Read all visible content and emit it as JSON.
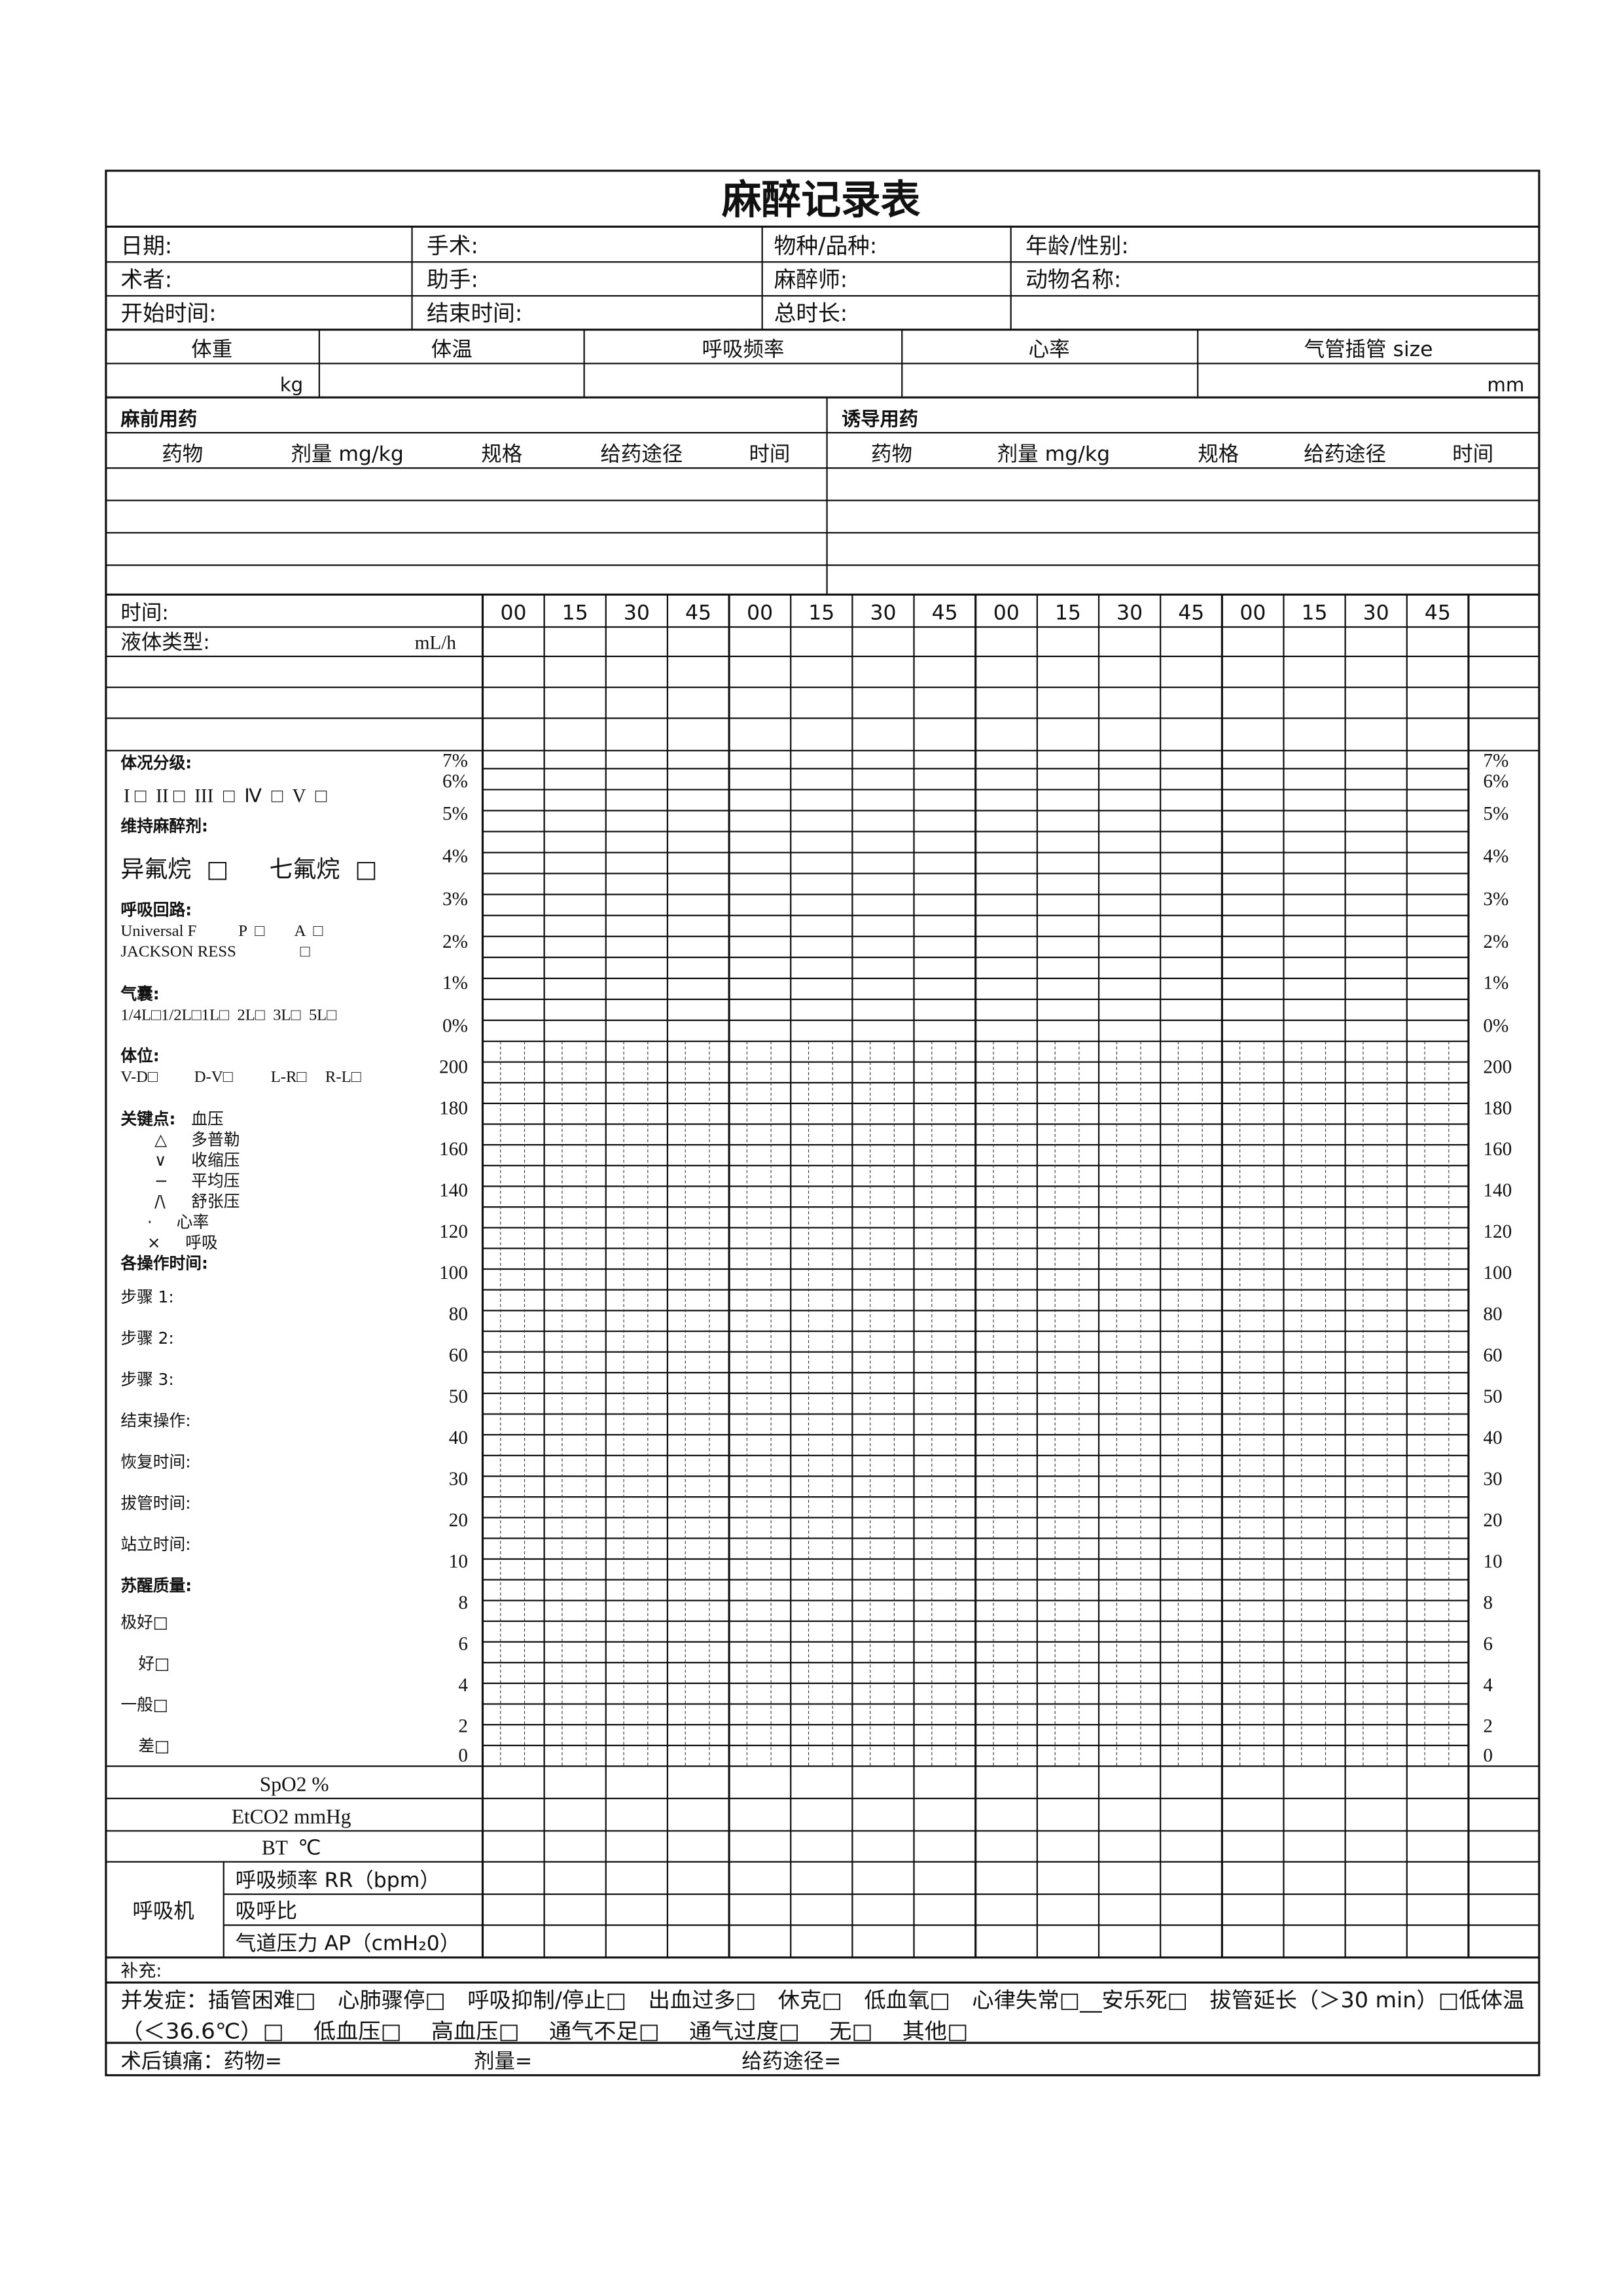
{
  "title": "麻醉记录表",
  "info": [
    [
      "日期:",
      "手术:",
      "物种/品种:",
      "年龄/性别:"
    ],
    [
      "术者:",
      "助手:",
      "麻醉师:",
      "动物名称:"
    ],
    [
      "开始时间:",
      "结束时间:",
      "总时长:",
      ""
    ]
  ],
  "vitals": {
    "headers": [
      "体重",
      "体温",
      "呼吸频率",
      "心率",
      "气管插管  size"
    ],
    "weight_unit": "kg",
    "tube_unit": "mm"
  },
  "drugs": {
    "premed_title": "麻前用药",
    "induction_title": "诱导用药",
    "columns": [
      "药物",
      "剂量 mg/kg",
      "规格",
      "给药途径",
      "时间"
    ]
  },
  "time_row": {
    "label": "时间:",
    "times": [
      "00",
      "15",
      "30",
      "45",
      "00",
      "15",
      "30",
      "45",
      "00",
      "15",
      "30",
      "45",
      "00",
      "15",
      "30",
      "45"
    ]
  },
  "fluid": {
    "label": "液体类型:",
    "unit": "mL/h"
  },
  "left_panel": {
    "condition_title": "体况分级:",
    "condition_options": "I □  II □  III  □  Ⅳ  □  V  □",
    "maintenance_title": "维持麻醉剂:",
    "maintenance_options": [
      "异氟烷  □",
      "七氟烷  □"
    ],
    "circuit_title": "呼吸回路:",
    "circuit_line1": [
      "Universal F",
      "P  □",
      "A  □"
    ],
    "circuit_line2": [
      "JACKSON RESS",
      "□"
    ],
    "bag_title": "气囊:",
    "bag_options": "1/4L□1/2L□1L□  2L□  3L□  5L□",
    "position_title": "体位:",
    "position_options": [
      "V-D□",
      "D-V□",
      "L-R□",
      "R-L□"
    ],
    "key_title": "关键点:",
    "key_bp": "血压",
    "key_items": [
      {
        "symbol": "△",
        "label": "多普勒"
      },
      {
        "symbol": "∨",
        "label": "收缩压"
      },
      {
        "symbol": "−",
        "label": "平均压"
      },
      {
        "symbol": "/\\",
        "label": "舒张压"
      },
      {
        "symbol": "·",
        "label": "心率"
      },
      {
        "symbol": "×",
        "label": "呼吸"
      }
    ],
    "ops_title": "各操作时间:",
    "ops": [
      "步骤 1:",
      "步骤 2:",
      "步骤 3:",
      "结束操作:",
      "恢复时间:",
      "拔管时间:",
      "站立时间:"
    ],
    "recovery_title": "苏醒质量:",
    "recovery_options": [
      "极好□",
      "好□",
      "一般□",
      "差□"
    ]
  },
  "chart_scales": {
    "percent_labels": [
      "7%",
      "6%",
      "5%",
      "4%",
      "3%",
      "2%",
      "1%",
      "0%"
    ],
    "value_labels": [
      "200",
      "180",
      "160",
      "140",
      "120",
      "100",
      "80",
      "60",
      "50",
      "40",
      "30",
      "20",
      "10",
      "8",
      "6",
      "4",
      "2",
      "0"
    ]
  },
  "monitor_rows": [
    "SpO2 %",
    "EtCO2 mmHg",
    "BT  ℃"
  ],
  "ventilator": {
    "label": "呼吸机",
    "rows": [
      "呼吸频率 RR（bpm）",
      "吸呼比",
      "气道压力 AP（cmH₂0）"
    ]
  },
  "supplement": "补充:",
  "complications": [
    "并发症：插管困难□　心肺骤停□　呼吸抑制/停止□　出血过多□　休克□　低血氧□　心律失常□__安乐死□　拔管延长（＞30 min）□低体温",
    "（＜36.6℃）□　 低血压□　 高血压□　 通气不足□　 通气过度□　 无□　 其他□"
  ],
  "analgesia": {
    "label": "术后镇痛：药物=",
    "dose": "剂量=",
    "route": "给药途径="
  }
}
